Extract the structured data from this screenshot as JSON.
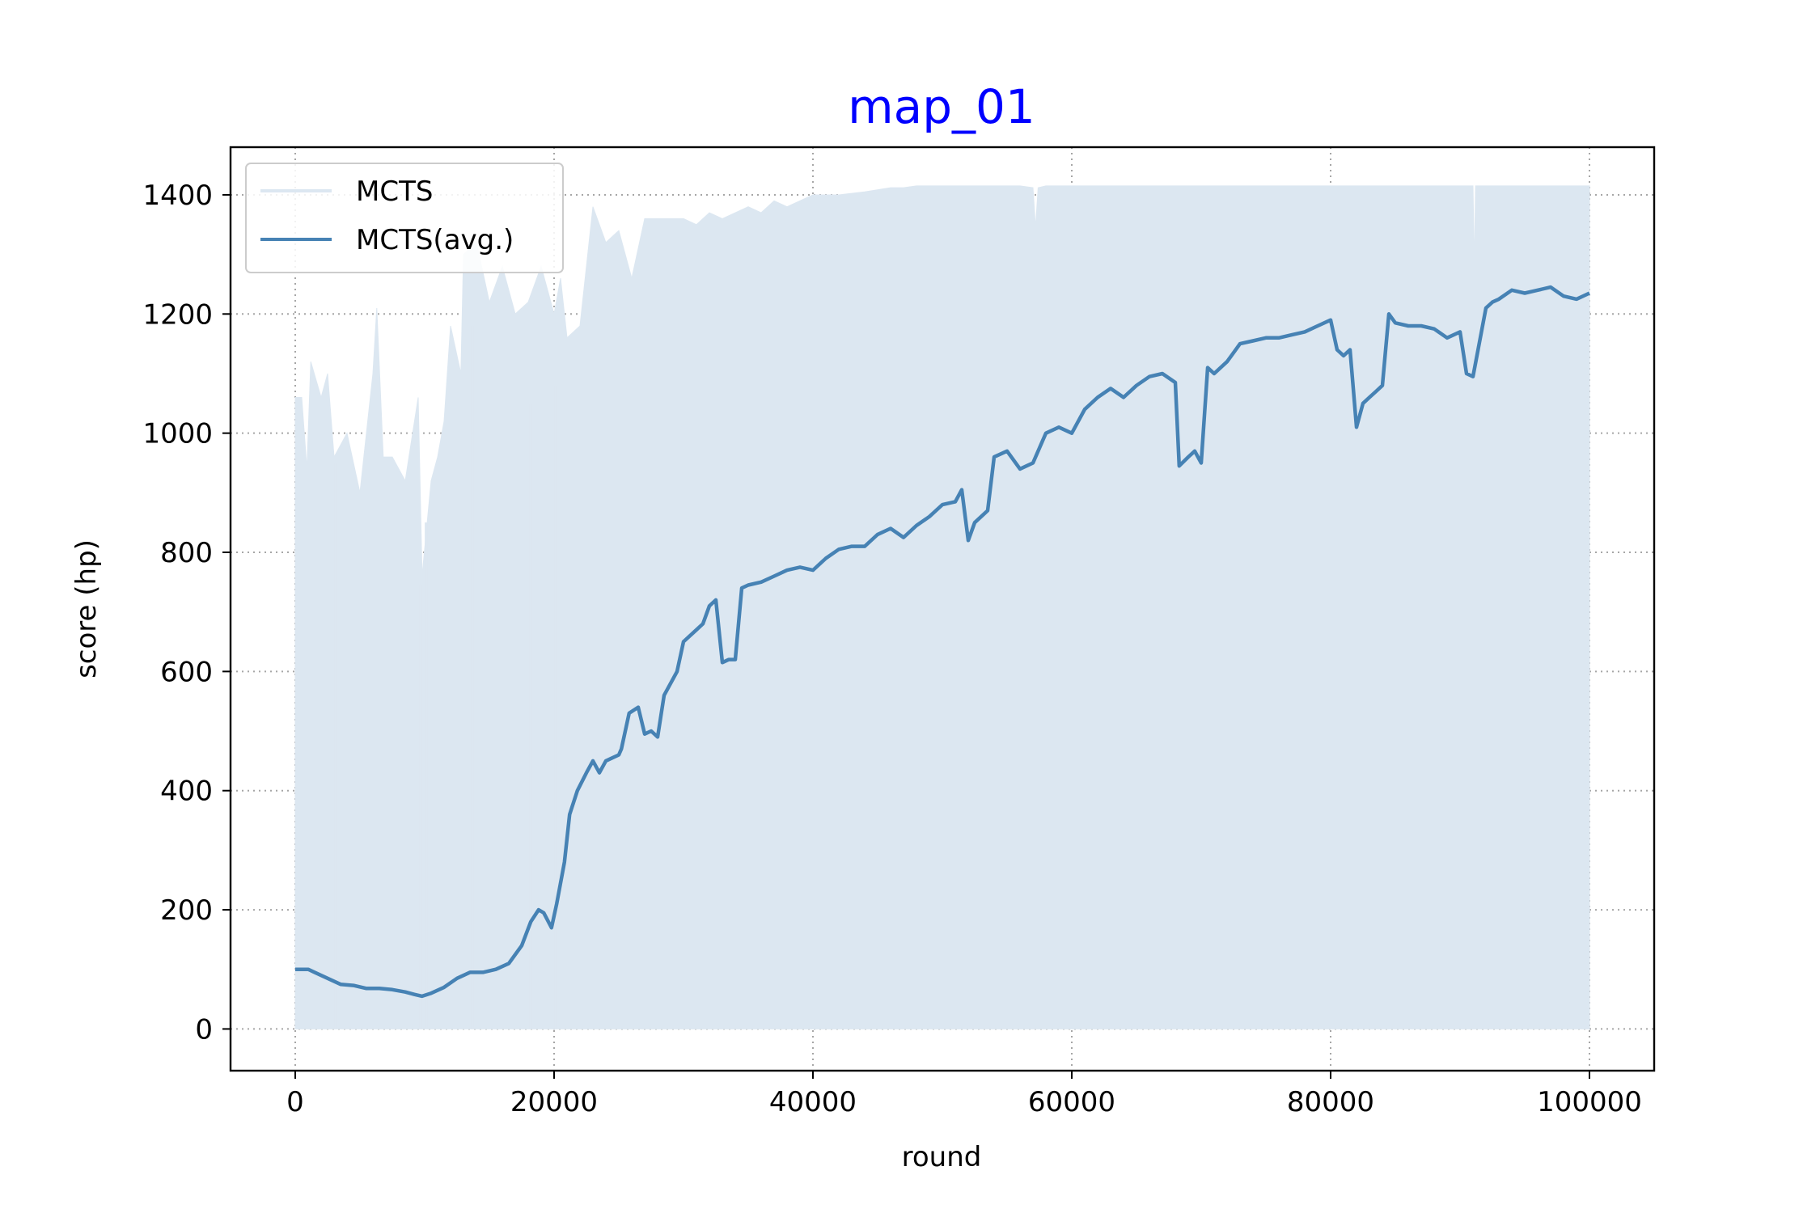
{
  "chart_data": {
    "type": "line",
    "title": "map_01",
    "title_color": "#0000ff",
    "xlabel": "round",
    "ylabel": "score (hp)",
    "xlim": [
      -5000,
      105000
    ],
    "ylim": [
      -70,
      1480
    ],
    "xticks": [
      0,
      20000,
      40000,
      60000,
      80000,
      100000
    ],
    "xtick_labels": [
      "0",
      "20000",
      "40000",
      "60000",
      "80000",
      "100000"
    ],
    "yticks": [
      0,
      200,
      400,
      600,
      800,
      1000,
      1200,
      1400
    ],
    "ytick_labels": [
      "0",
      "200",
      "400",
      "600",
      "800",
      "1000",
      "1200",
      "1400"
    ],
    "grid": true,
    "legend_position": "top-left",
    "series": [
      {
        "name": "MCTS",
        "color": "#dce7f1",
        "style": "raw-fill",
        "envelope": [
          [
            0,
            1060
          ],
          [
            500,
            1060
          ],
          [
            900,
            940
          ],
          [
            1200,
            1120
          ],
          [
            2000,
            1060
          ],
          [
            2500,
            1100
          ],
          [
            3000,
            960
          ],
          [
            4000,
            1000
          ],
          [
            5000,
            900
          ],
          [
            6000,
            1100
          ],
          [
            6300,
            1210
          ],
          [
            6800,
            960
          ],
          [
            7500,
            960
          ],
          [
            8500,
            920
          ],
          [
            9500,
            1060
          ],
          [
            9800,
            760
          ],
          [
            10500,
            920
          ],
          [
            11000,
            960
          ],
          [
            11500,
            1020
          ],
          [
            12000,
            1180
          ],
          [
            12800,
            1100
          ],
          [
            13000,
            1300
          ],
          [
            14000,
            1320
          ],
          [
            15000,
            1220
          ],
          [
            16000,
            1280
          ],
          [
            17000,
            1200
          ],
          [
            18000,
            1220
          ],
          [
            19000,
            1280
          ],
          [
            20000,
            1200
          ],
          [
            20500,
            1260
          ],
          [
            21000,
            1160
          ],
          [
            22000,
            1180
          ],
          [
            23000,
            1380
          ],
          [
            24000,
            1320
          ],
          [
            25000,
            1340
          ],
          [
            26000,
            1260
          ],
          [
            27000,
            1360
          ],
          [
            28000,
            1360
          ],
          [
            29000,
            1360
          ],
          [
            30000,
            1360
          ],
          [
            31000,
            1350
          ],
          [
            32000,
            1370
          ],
          [
            33000,
            1360
          ],
          [
            34000,
            1370
          ],
          [
            35000,
            1380
          ],
          [
            36000,
            1370
          ],
          [
            37000,
            1390
          ],
          [
            38000,
            1380
          ],
          [
            39000,
            1390
          ],
          [
            40000,
            1400
          ],
          [
            42000,
            1400
          ],
          [
            44000,
            1405
          ],
          [
            46000,
            1412
          ],
          [
            47000,
            1412
          ],
          [
            48000,
            1415
          ],
          [
            56000,
            1415
          ],
          [
            57000,
            1412
          ],
          [
            57200,
            1345
          ],
          [
            57400,
            1412
          ],
          [
            58000,
            1415
          ],
          [
            90000,
            1415
          ],
          [
            91000,
            1415
          ],
          [
            91100,
            1280
          ],
          [
            91200,
            1415
          ],
          [
            100000,
            1415
          ]
        ],
        "dips": [
          [
            1000,
            930
          ],
          [
            3100,
            950
          ],
          [
            6900,
            770
          ],
          [
            9700,
            745
          ],
          [
            10100,
            850
          ],
          [
            13700,
            1180
          ],
          [
            18200,
            1050
          ],
          [
            20100,
            1080
          ],
          [
            23500,
            1230
          ],
          [
            26800,
            1260
          ],
          [
            31400,
            1310
          ],
          [
            46800,
            1385
          ],
          [
            56800,
            1345
          ],
          [
            91000,
            1278
          ]
        ]
      },
      {
        "name": "MCTS(avg.)",
        "color": "#4682b4",
        "style": "line",
        "x": [
          0,
          1000,
          1500,
          2500,
          3500,
          4500,
          5500,
          6500,
          7500,
          8500,
          9200,
          9800,
          10500,
          11500,
          12500,
          13500,
          14500,
          15500,
          16500,
          17500,
          18200,
          18800,
          19200,
          19800,
          20200,
          20800,
          21200,
          21800,
          22500,
          23000,
          23500,
          24000,
          24500,
          25000,
          25200,
          25800,
          26500,
          27000,
          27500,
          28000,
          28500,
          29500,
          30000,
          31000,
          31500,
          32000,
          32500,
          33000,
          33500,
          34000,
          34500,
          35000,
          36000,
          37000,
          38000,
          39000,
          40000,
          41000,
          42000,
          43000,
          44000,
          45000,
          46000,
          47000,
          48000,
          49000,
          50000,
          51000,
          51500,
          52000,
          52500,
          53000,
          53500,
          54000,
          55000,
          56000,
          57000,
          58000,
          59000,
          60000,
          61000,
          62000,
          63000,
          64000,
          65000,
          66000,
          67000,
          68000,
          68300,
          69000,
          69500,
          70000,
          70500,
          71000,
          72000,
          73000,
          74000,
          75000,
          76000,
          77000,
          78000,
          79000,
          80000,
          80500,
          81000,
          81500,
          82000,
          82500,
          83000,
          83500,
          84000,
          84500,
          85000,
          86000,
          87000,
          88000,
          89000,
          90000,
          90500,
          91000,
          92000,
          92500,
          93000,
          94000,
          95000,
          96000,
          97000,
          98000,
          99000,
          100000
        ],
        "y": [
          100,
          100,
          95,
          85,
          75,
          73,
          68,
          68,
          66,
          62,
          58,
          55,
          60,
          70,
          85,
          95,
          95,
          100,
          110,
          140,
          180,
          200,
          195,
          170,
          210,
          280,
          360,
          400,
          430,
          450,
          430,
          450,
          455,
          460,
          470,
          530,
          540,
          495,
          500,
          490,
          560,
          600,
          650,
          670,
          680,
          710,
          720,
          615,
          620,
          620,
          740,
          745,
          750,
          760,
          770,
          775,
          770,
          790,
          805,
          810,
          810,
          830,
          840,
          825,
          845,
          860,
          880,
          885,
          905,
          820,
          850,
          860,
          870,
          960,
          970,
          940,
          950,
          1000,
          1010,
          1000,
          1040,
          1060,
          1075,
          1060,
          1080,
          1095,
          1100,
          1085,
          945,
          960,
          970,
          950,
          1110,
          1100,
          1120,
          1150,
          1155,
          1160,
          1160,
          1165,
          1170,
          1180,
          1190,
          1140,
          1130,
          1140,
          1010,
          1050,
          1060,
          1070,
          1080,
          1200,
          1185,
          1180,
          1180,
          1175,
          1160,
          1170,
          1100,
          1095,
          1210,
          1220,
          1225,
          1240,
          1235,
          1240,
          1245,
          1230,
          1225,
          1235
        ]
      }
    ]
  }
}
